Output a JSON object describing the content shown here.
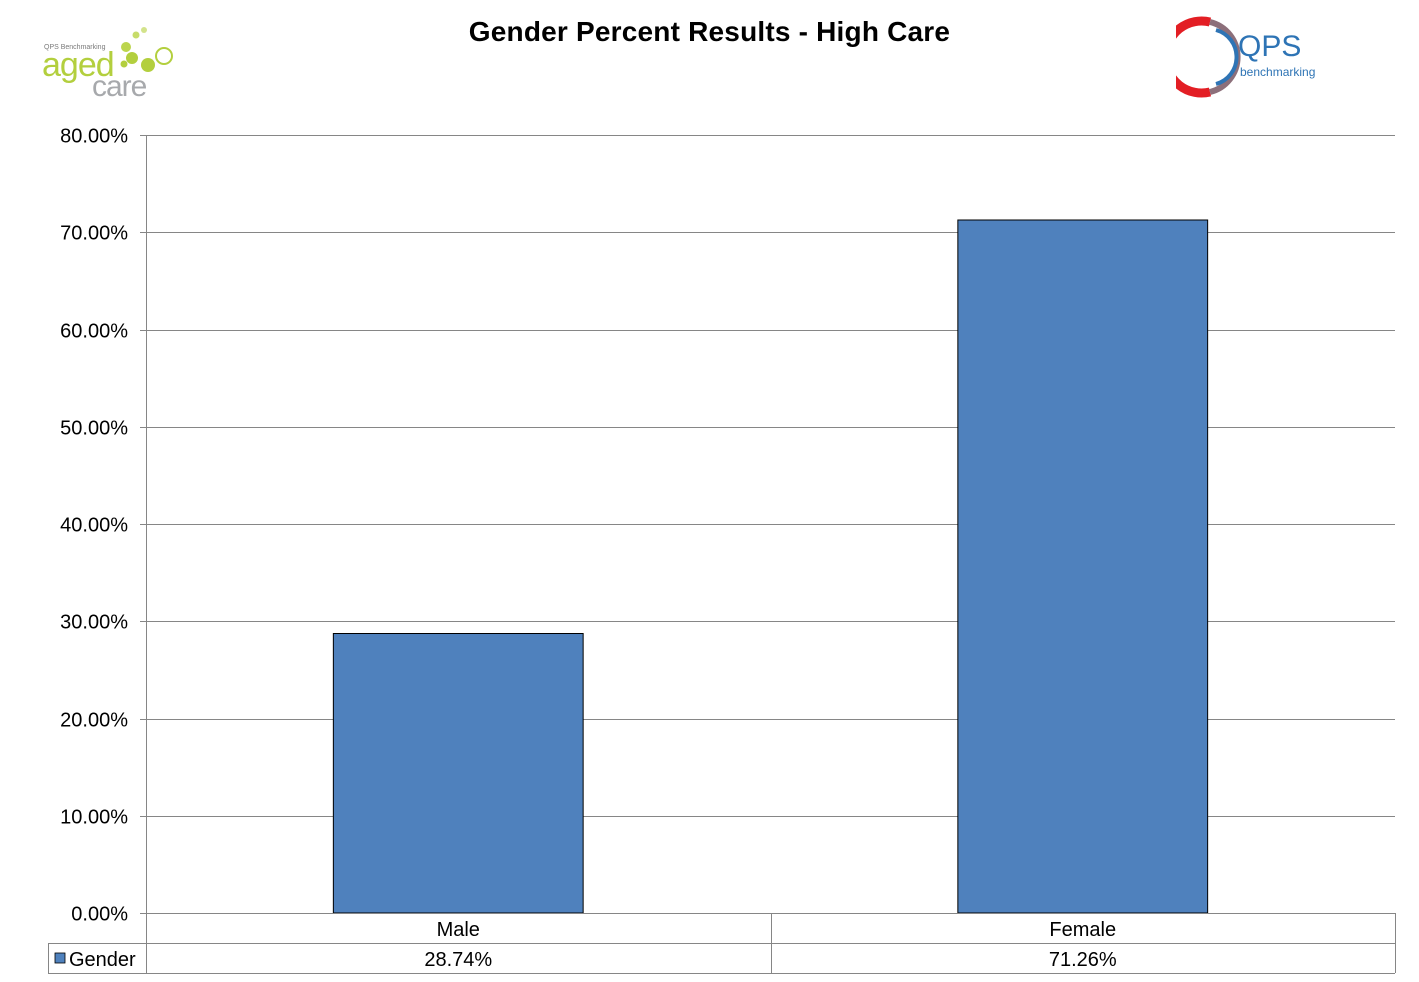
{
  "header": {
    "title": "Gender Percent Results - High Care",
    "left_logo": {
      "small_text": "QPS Benchmarking",
      "word1": "aged",
      "word2": "care",
      "color_primary": "#b3cf3e",
      "color_secondary": "#a7a9ac"
    },
    "right_logo": {
      "word1": "QPS",
      "word2": "benchmarking",
      "color_red": "#e31e24",
      "color_grey": "#8c6f7a",
      "color_blue": "#2e74b5"
    }
  },
  "chart_data": {
    "type": "bar",
    "title": "Gender Percent Results - High Care",
    "categories": [
      "Male",
      "Female"
    ],
    "series": [
      {
        "name": "Gender",
        "values": [
          28.74,
          71.26
        ],
        "value_labels": [
          "28.74%",
          "71.26%"
        ],
        "color": "#4f81bd"
      }
    ],
    "ylim": [
      0,
      80
    ],
    "yticks": [
      0,
      10,
      20,
      30,
      40,
      50,
      60,
      70,
      80
    ],
    "ytick_labels": [
      "0.00%",
      "10.00%",
      "20.00%",
      "30.00%",
      "40.00%",
      "50.00%",
      "60.00%",
      "70.00%",
      "80.00%"
    ],
    "grid": true,
    "legend": "data-table",
    "data_table": true
  }
}
